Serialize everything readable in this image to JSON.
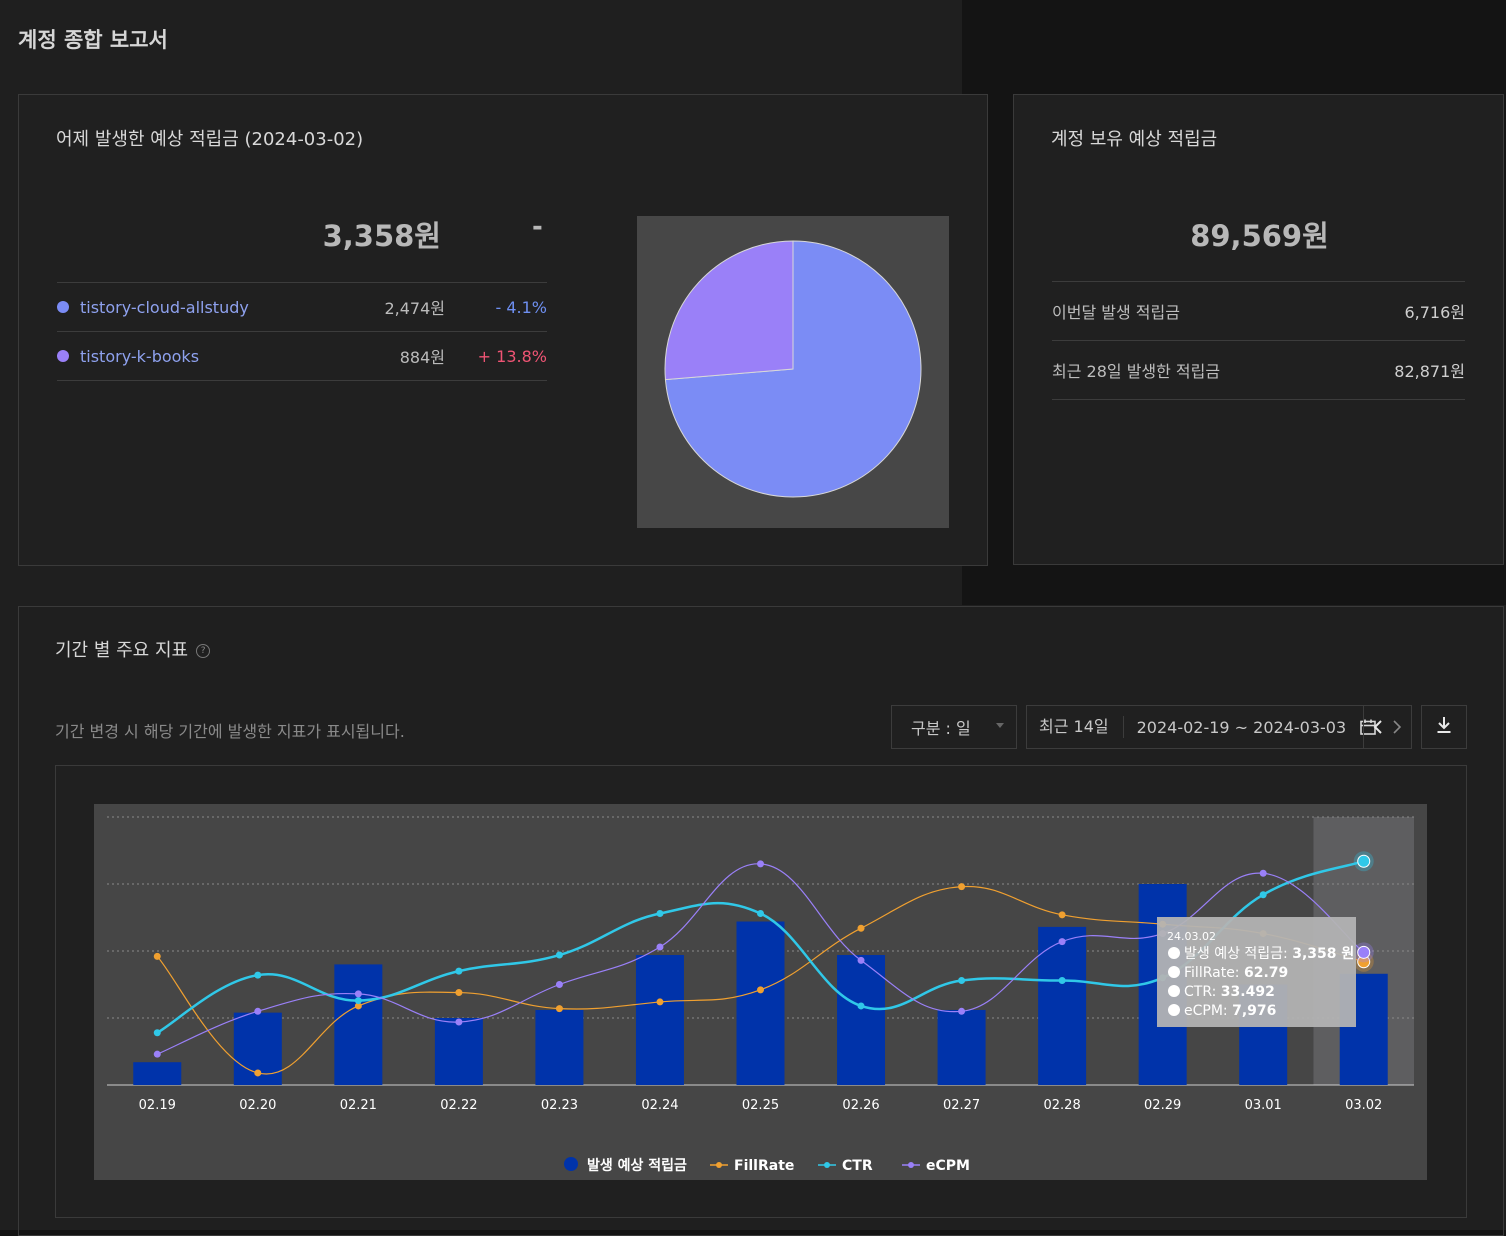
{
  "page": {
    "title": "계정 종합 보고서"
  },
  "yesterday_card": {
    "title": "어제 발생한 예상 적립금 (2024-03-02)",
    "total": "3,358원",
    "total_change": "-",
    "blogs": [
      {
        "name": "tistory-cloud-allstudy",
        "amount": "2,474원",
        "change": "- 4.1%",
        "color": "#7b8cf5",
        "change_color": "#6e8ff0"
      },
      {
        "name": "tistory-k-books",
        "amount": "884원",
        "change": "+ 13.8%",
        "color": "#9a80f8",
        "change_color": "#ef5474"
      }
    ],
    "pie": {
      "values": [
        2474,
        884
      ],
      "colors": [
        "#7b8cf5",
        "#9a80f8"
      ]
    }
  },
  "balance_card": {
    "title": "계정 보유 예상 적립금",
    "total": "89,569원",
    "rows": [
      {
        "label": "이번달 발생 적립금",
        "value": "6,716원"
      },
      {
        "label": "최근 28일 발생한 적립금",
        "value": "82,871원"
      }
    ]
  },
  "metrics": {
    "title": "기간 별 주요 지표",
    "help_icon": "question-circle-icon",
    "description": "기간 변경 시 해당 기간에 발생한 지표가 표시됩니다.",
    "group_select": "구분 : 일",
    "range_label": "최근 14일",
    "date_range": "2024-02-19 ~ 2024-03-03",
    "icons": {
      "calendar": "calendar-icon",
      "prev": "chevron-left-icon",
      "next": "chevron-right-icon",
      "download": "download-icon"
    }
  },
  "chart_data": {
    "type": "bar",
    "categories": [
      "02.19",
      "02.20",
      "02.21",
      "02.22",
      "02.23",
      "02.24",
      "02.25",
      "02.26",
      "02.27",
      "02.28",
      "02.29",
      "03.01",
      "03.02"
    ],
    "series": [
      {
        "name": "발생 예상 적립금",
        "kind": "bar",
        "color": "#0033aa",
        "values": [
          0.17,
          0.54,
          0.9,
          0.5,
          0.56,
          0.97,
          1.22,
          0.97,
          0.56,
          1.18,
          1.5,
          0.75,
          0.83
        ]
      },
      {
        "name": "FillRate",
        "kind": "line",
        "color": "#f0a030",
        "values": [
          0.96,
          0.09,
          0.59,
          0.69,
          0.57,
          0.62,
          0.71,
          1.17,
          1.48,
          1.27,
          1.2,
          1.13,
          0.92
        ]
      },
      {
        "name": "CTR",
        "kind": "line",
        "color": "#30c8e8",
        "values": [
          0.39,
          0.82,
          0.63,
          0.85,
          0.97,
          1.28,
          1.28,
          0.59,
          0.78,
          0.78,
          0.8,
          1.42,
          1.67
        ]
      },
      {
        "name": "eCPM",
        "kind": "line",
        "color": "#9a80f8",
        "values": [
          0.23,
          0.55,
          0.68,
          0.47,
          0.75,
          1.03,
          1.65,
          0.93,
          0.55,
          1.07,
          1.13,
          1.58,
          0.99
        ]
      }
    ],
    "ylim": [
      0,
      2
    ],
    "highlight_category": "03.02",
    "tooltip": {
      "date": "24.03.02",
      "items": [
        {
          "label": "발생 예상 적립금: ",
          "value": "3,358 원"
        },
        {
          "label": "FillRate: ",
          "value": "62.79"
        },
        {
          "label": "CTR: ",
          "value": "33.492"
        },
        {
          "label": "eCPM: ",
          "value": "7,976"
        }
      ]
    }
  }
}
